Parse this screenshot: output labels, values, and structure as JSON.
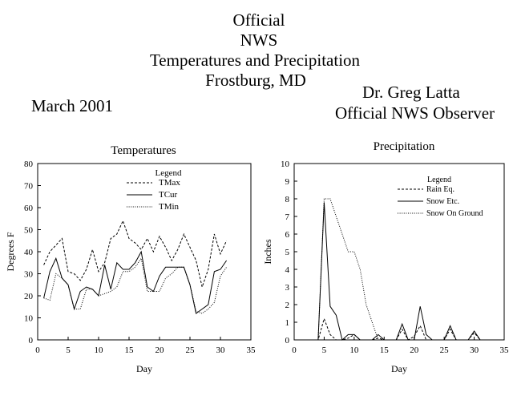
{
  "header": {
    "lines": [
      "Official",
      "NWS",
      "Temperatures and Precipitation",
      "Frostburg, MD"
    ],
    "month": "March 2001",
    "observer_name": "Dr. Greg Latta",
    "observer_title": "Official NWS Observer"
  },
  "chart_data": [
    {
      "type": "line",
      "title": "Temperatures",
      "xlabel": "Day",
      "ylabel": "Degrees F",
      "xlim": [
        0,
        35
      ],
      "ylim": [
        0,
        80
      ],
      "xticks": [
        0,
        5,
        10,
        15,
        20,
        25,
        30,
        35
      ],
      "yticks": [
        0,
        10,
        20,
        30,
        40,
        50,
        60,
        70,
        80
      ],
      "grid": false,
      "legend": {
        "title": "Legend",
        "placement": "top-right"
      },
      "x": [
        1,
        2,
        3,
        4,
        5,
        6,
        7,
        8,
        9,
        10,
        11,
        12,
        13,
        14,
        15,
        16,
        17,
        18,
        19,
        20,
        21,
        22,
        23,
        24,
        25,
        26,
        27,
        28,
        29,
        30,
        31
      ],
      "series": [
        {
          "name": "TMax",
          "style": "dashed",
          "values": [
            34,
            40,
            43,
            46,
            31,
            30,
            27,
            32,
            41,
            31,
            35,
            46,
            48,
            54,
            46,
            44,
            41,
            46,
            40,
            47,
            42,
            36,
            41,
            48,
            42,
            36,
            24,
            32,
            48,
            39,
            45
          ]
        },
        {
          "name": "TCur",
          "style": "solid",
          "values": [
            19,
            31,
            37,
            28,
            25,
            14,
            22,
            24,
            23,
            20,
            34,
            23,
            35,
            32,
            32,
            35,
            40,
            24,
            22,
            29,
            33,
            33,
            33,
            33,
            25,
            12,
            14,
            16,
            31,
            32,
            36
          ]
        },
        {
          "name": "TMin",
          "style": "dotted",
          "values": [
            19,
            18,
            30,
            28,
            25,
            14,
            14,
            23,
            23,
            20,
            21,
            22,
            24,
            31,
            31,
            33,
            37,
            22,
            22,
            22,
            28,
            30,
            33,
            33,
            25,
            13,
            12,
            14,
            17,
            29,
            33
          ]
        }
      ]
    },
    {
      "type": "line",
      "title": "Precipitation",
      "xlabel": "Day",
      "ylabel": "Inches",
      "xlim": [
        0,
        35
      ],
      "ylim": [
        0,
        10
      ],
      "xticks": [
        0,
        5,
        10,
        15,
        20,
        25,
        30,
        35
      ],
      "yticks": [
        0,
        1,
        2,
        3,
        4,
        5,
        6,
        7,
        8,
        9,
        10
      ],
      "grid": false,
      "legend": {
        "title": "Legend",
        "placement": "top-right"
      },
      "x": [
        1,
        2,
        3,
        4,
        5,
        6,
        7,
        8,
        9,
        10,
        11,
        12,
        13,
        14,
        15,
        16,
        17,
        18,
        19,
        20,
        21,
        22,
        23,
        24,
        25,
        26,
        27,
        28,
        29,
        30,
        31
      ],
      "series": [
        {
          "name": "Rain Eq.",
          "style": "dashed",
          "values": [
            0,
            0,
            0,
            0,
            1.2,
            0.3,
            0,
            0,
            0.1,
            0.3,
            0,
            0,
            0,
            0.1,
            0,
            0,
            0,
            0.6,
            0,
            0.2,
            0.8,
            0,
            0,
            0,
            0,
            0.6,
            0,
            0,
            0,
            0.4,
            0
          ]
        },
        {
          "name": "Snow Etc.",
          "style": "solid",
          "values": [
            0,
            0,
            0,
            0,
            7.8,
            1.9,
            1.4,
            0,
            0.3,
            0.3,
            0,
            0,
            0,
            0.3,
            0,
            0,
            0,
            0.9,
            0,
            0,
            1.9,
            0.3,
            0,
            0,
            0,
            0.8,
            0,
            0,
            0,
            0.5,
            0
          ]
        },
        {
          "name": "Snow On Ground",
          "style": "dotted",
          "values": [
            0,
            0,
            0,
            0,
            8,
            8,
            7,
            6,
            5,
            5,
            4,
            2,
            1,
            0,
            0,
            0,
            0,
            0,
            0,
            0,
            0,
            0,
            0,
            0,
            0,
            0,
            0,
            0,
            0,
            0,
            0
          ]
        }
      ]
    }
  ]
}
